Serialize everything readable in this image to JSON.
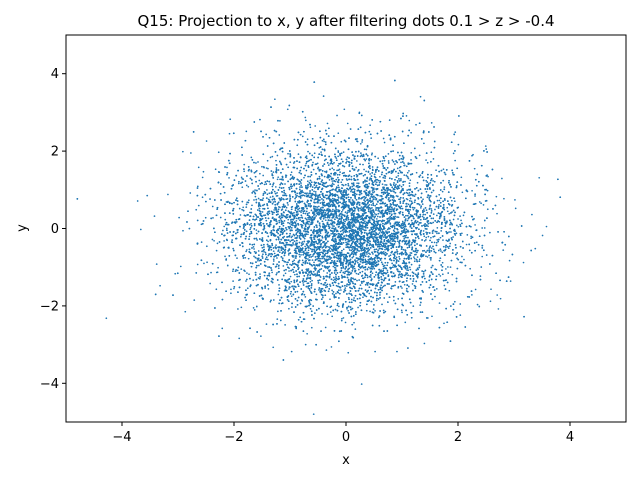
{
  "chart_data": {
    "type": "scatter",
    "title": "Q15: Projection to x, y after filtering dots 0.1 > z > -0.4",
    "xlabel": "x",
    "ylabel": "y",
    "xlim": [
      -5,
      5
    ],
    "ylim": [
      -5,
      5
    ],
    "xticks": [
      -4,
      -2,
      0,
      2,
      4
    ],
    "yticks": [
      -4,
      -2,
      0,
      2,
      4
    ],
    "xtick_labels": [
      "−4",
      "−2",
      "0",
      "2",
      "4"
    ],
    "ytick_labels": [
      "−4",
      "−2",
      "0",
      "2",
      "4"
    ],
    "grid": false,
    "legend": "none",
    "marker_color": "#1f77b4",
    "distribution_note": "approx. 10000 points, centered at (0, 0), standard deviation about 1 in both x and y",
    "series": [
      {
        "points_sample": [
          [
            -4.28,
            -2.32
          ],
          [
            -3.72,
            0.71
          ],
          [
            -3.55,
            0.85
          ],
          [
            -3.42,
            0.32
          ],
          [
            -3.38,
            -0.92
          ],
          [
            -3.32,
            -1.48
          ],
          [
            -3.18,
            0.88
          ],
          [
            -3.05,
            -1.17
          ],
          [
            -2.98,
            0.28
          ],
          [
            -2.95,
            -0.98
          ],
          [
            -2.87,
            -2.15
          ],
          [
            -2.77,
            1.95
          ],
          [
            -2.71,
            -1.85
          ],
          [
            -2.63,
            1.58
          ],
          [
            -2.56,
            1.32
          ],
          [
            -2.49,
            2.26
          ],
          [
            -2.41,
            -1.14
          ],
          [
            -2.38,
            0.57
          ],
          [
            -2.21,
            -2.58
          ],
          [
            -2.08,
            2.45
          ],
          [
            -1.93,
            -2.08
          ],
          [
            -1.78,
            2.51
          ],
          [
            -1.52,
            -2.78
          ],
          [
            -1.42,
            -2.47
          ],
          [
            -1.3,
            -3.07
          ],
          [
            -1.18,
            2.78
          ],
          [
            -1.04,
            3.08
          ],
          [
            -0.97,
            -3.18
          ],
          [
            -0.72,
            -3.0
          ],
          [
            -0.55,
            2.65
          ],
          [
            -0.4,
            3.42
          ],
          [
            -0.26,
            -3.06
          ],
          [
            -0.16,
            2.92
          ],
          [
            -0.03,
            3.08
          ],
          [
            0.04,
            -3.21
          ],
          [
            0.24,
            3.0
          ],
          [
            0.28,
            -4.02
          ],
          [
            0.52,
            -3.18
          ],
          [
            0.78,
            2.8
          ],
          [
            0.91,
            -3.18
          ],
          [
            1.08,
            2.91
          ],
          [
            1.4,
            -2.97
          ],
          [
            1.53,
            2.73
          ],
          [
            1.75,
            -2.45
          ],
          [
            1.95,
            2.49
          ],
          [
            2.04,
            -1.95
          ],
          [
            2.25,
            1.88
          ],
          [
            2.4,
            -1.23
          ],
          [
            2.52,
            1.38
          ],
          [
            2.58,
            -1.88
          ],
          [
            2.7,
            -1.72
          ],
          [
            2.82,
            0.77
          ],
          [
            2.94,
            -1.36
          ],
          [
            3.03,
            0.52
          ],
          [
            3.17,
            -0.88
          ],
          [
            3.32,
            0.36
          ],
          [
            3.38,
            -0.52
          ],
          [
            3.45,
            1.31
          ],
          [
            3.51,
            -0.18
          ],
          [
            3.58,
            0.05
          ]
        ]
      }
    ]
  }
}
